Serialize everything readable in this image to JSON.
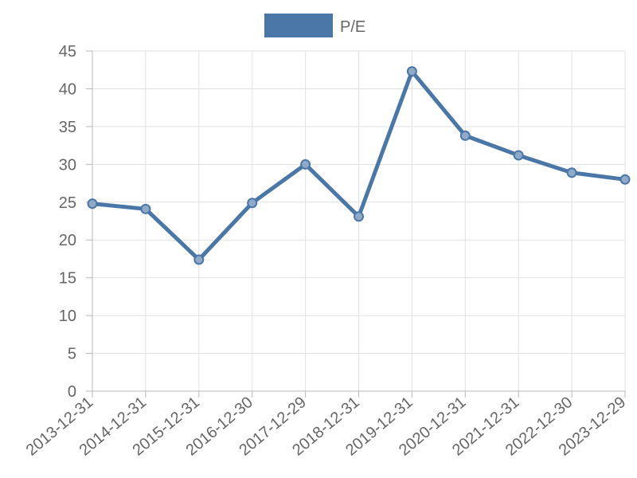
{
  "chart_data": {
    "type": "line",
    "categories": [
      "2013-12-31",
      "2014-12-31",
      "2015-12-31",
      "2016-12-30",
      "2017-12-29",
      "2018-12-31",
      "2019-12-31",
      "2020-12-31",
      "2021-12-31",
      "2022-12-30",
      "2023-12-29"
    ],
    "series": [
      {
        "name": "P/E",
        "values": [
          24.8,
          24.1,
          17.4,
          24.9,
          30.0,
          23.1,
          42.3,
          33.8,
          31.2,
          28.9,
          28.0
        ],
        "color": "#4a77a8"
      }
    ],
    "yticks": [
      "0",
      "5",
      "10",
      "15",
      "20",
      "25",
      "30",
      "35",
      "40",
      "45"
    ],
    "ylim": [
      0,
      45
    ],
    "grid": true,
    "legend_position": "top-center"
  }
}
